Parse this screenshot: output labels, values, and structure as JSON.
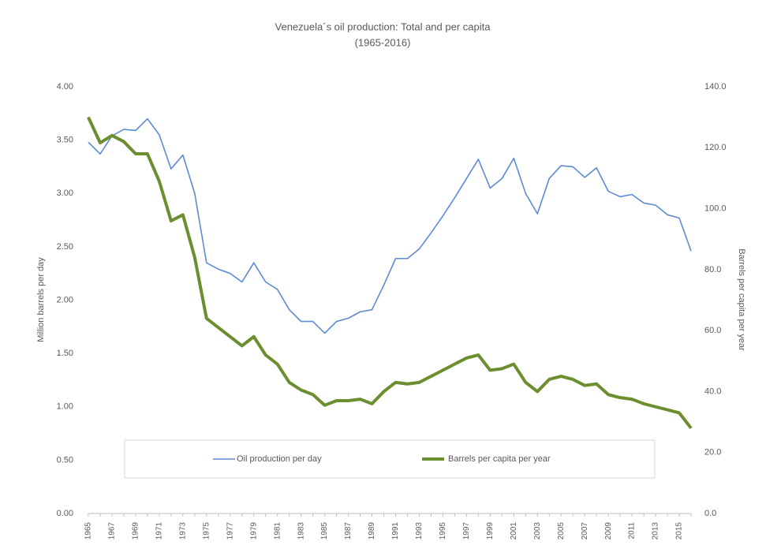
{
  "chart_data": {
    "type": "line",
    "title": "Venezuela´s oil production: Total and per capita",
    "subtitle": "(1965-2016)",
    "y_label": "Million barrels per day",
    "y2_label": "Barrels per capita per year",
    "categories": [
      "1965",
      null,
      "1967",
      null,
      "1969",
      null,
      "1971",
      null,
      "1973",
      null,
      "1975",
      null,
      "1977",
      null,
      "1979",
      null,
      "1981",
      null,
      "1983",
      null,
      "1985",
      null,
      "1987",
      null,
      "1989",
      null,
      "1991",
      null,
      "1993",
      null,
      "1995",
      null,
      "1997",
      null,
      "1999",
      null,
      "2001",
      null,
      "2003",
      null,
      "2005",
      null,
      "2007",
      null,
      "2009",
      null,
      "2011",
      null,
      "2013",
      null,
      "2015",
      null
    ],
    "series": [
      {
        "name": "Oil production per day",
        "color": "#5b8bd0",
        "axis": "y",
        "values": [
          3.48,
          3.37,
          3.54,
          3.6,
          3.59,
          3.7,
          3.55,
          3.23,
          3.36,
          3.0,
          2.35,
          2.29,
          2.25,
          2.17,
          2.35,
          2.17,
          2.1,
          1.91,
          1.8,
          1.8,
          1.69,
          1.8,
          1.83,
          1.89,
          1.91,
          2.14,
          2.39,
          2.39,
          2.48,
          2.63,
          2.79,
          2.96,
          3.14,
          3.32,
          3.05,
          3.14,
          3.33,
          3.0,
          2.81,
          3.14,
          3.26,
          3.25,
          3.15,
          3.24,
          3.02,
          2.97,
          2.99,
          2.91,
          2.89,
          2.8,
          2.77,
          2.46
        ]
      },
      {
        "name": "Barrels per capita per year",
        "color": "#6b8e2f",
        "axis": "y2",
        "values": [
          130,
          121.6,
          124,
          122,
          118,
          118,
          109,
          96,
          98,
          84,
          64,
          61,
          58,
          55,
          58,
          52,
          49,
          43,
          40.5,
          39,
          35.5,
          37,
          37,
          37.5,
          36,
          40,
          43,
          42.5,
          43,
          45,
          47,
          49,
          51,
          52,
          47,
          47.5,
          49,
          43,
          40,
          44,
          45,
          44,
          42,
          42.5,
          39,
          38,
          37.5,
          36,
          35,
          34,
          33,
          28
        ]
      }
    ],
    "ylim": [
      0,
      4
    ],
    "yticks": [
      {
        "value": 0,
        "label": "0.00"
      },
      {
        "value": 0.5,
        "label": "0.50"
      },
      {
        "value": 1,
        "label": "1.00"
      },
      {
        "value": 1.5,
        "label": "1.50"
      },
      {
        "value": 2,
        "label": "2.00"
      },
      {
        "value": 2.5,
        "label": "2.50"
      },
      {
        "value": 3,
        "label": "3.00"
      },
      {
        "value": 3.5,
        "label": "3.50"
      },
      {
        "value": 4,
        "label": "4.00"
      }
    ],
    "y2lim": [
      0,
      140
    ],
    "y2ticks": [
      {
        "value": 0,
        "label": "0.0"
      },
      {
        "value": 20,
        "label": "20.0"
      },
      {
        "value": 40,
        "label": "40.0"
      },
      {
        "value": 60,
        "label": "60.0"
      },
      {
        "value": 80,
        "label": "80.0"
      },
      {
        "value": 100,
        "label": "100.0"
      },
      {
        "value": 120,
        "label": "120.0"
      },
      {
        "value": 140,
        "label": "140.0"
      }
    ],
    "grid": false,
    "legend": "bottom"
  }
}
